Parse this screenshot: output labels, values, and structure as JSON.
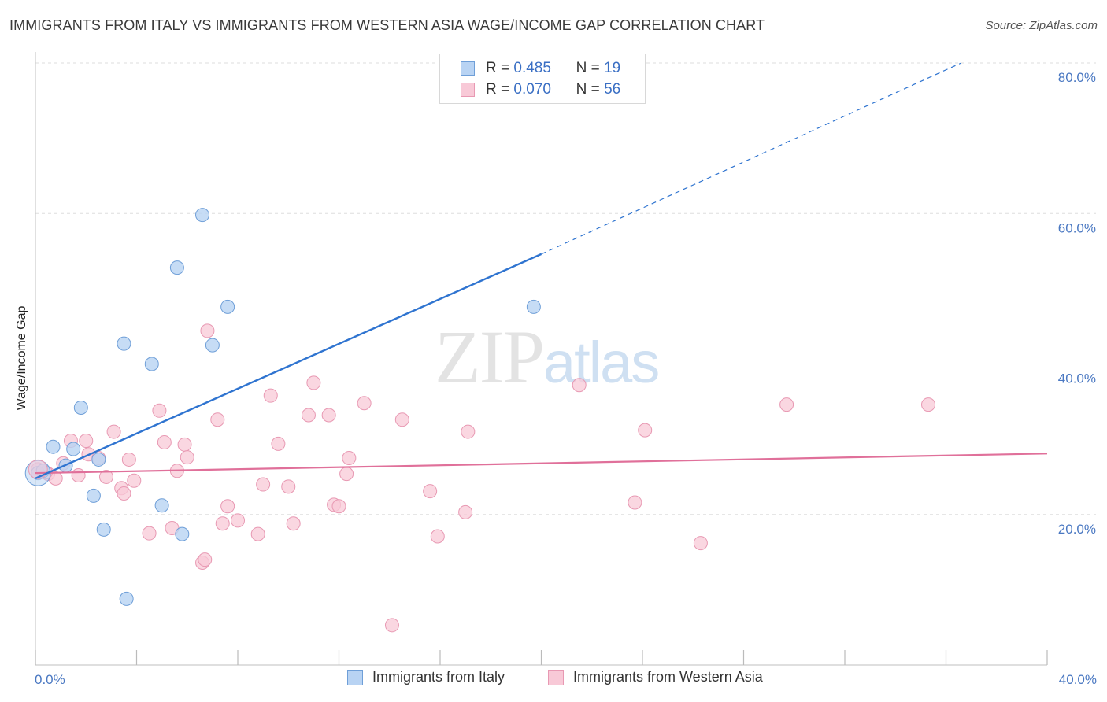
{
  "title": "IMMIGRANTS FROM ITALY VS IMMIGRANTS FROM WESTERN ASIA WAGE/INCOME GAP CORRELATION CHART",
  "source": "Source: ZipAtlas.com",
  "watermark": {
    "zip": "ZIP",
    "atlas": "atlas"
  },
  "legend": {
    "rows": [
      {
        "r_label": "R =",
        "r_value": "0.485",
        "n_label": "N =",
        "n_value": "19"
      },
      {
        "r_label": "R =",
        "r_value": "0.070",
        "n_label": "N =",
        "n_value": "56"
      }
    ]
  },
  "colors": {
    "italy_fill": "#b8d3f3",
    "italy_stroke": "#6f9fd8",
    "italy_line": "#2f74d0",
    "wasia_fill": "#f8c9d7",
    "wasia_stroke": "#e899b3",
    "wasia_line": "#e0709a",
    "grid": "#dedede",
    "tick_text": "#4a78c2"
  },
  "chart_data": {
    "type": "scatter",
    "title": "IMMIGRANTS FROM ITALY VS IMMIGRANTS FROM WESTERN ASIA WAGE/INCOME GAP CORRELATION CHART",
    "xlabel": "",
    "ylabel": "Wage/Income Gap",
    "xlim": [
      0,
      40
    ],
    "ylim": [
      0,
      80
    ],
    "x_tick_labels": [
      "0.0%",
      "40.0%"
    ],
    "y_ticks": [
      20,
      40,
      60,
      80
    ],
    "y_tick_labels": [
      "20.0%",
      "40.0%",
      "60.0%",
      "80.0%"
    ],
    "grid": true,
    "legend_position": "top-center",
    "series": [
      {
        "name": "Immigrants from Italy",
        "R": 0.485,
        "N": 19,
        "points": [
          [
            0.1,
            25.5
          ],
          [
            0.7,
            29.0
          ],
          [
            1.2,
            26.5
          ],
          [
            1.8,
            34.2
          ],
          [
            2.3,
            22.5
          ],
          [
            2.7,
            18.0
          ],
          [
            2.5,
            27.3
          ],
          [
            3.5,
            42.7
          ],
          [
            3.6,
            8.8
          ],
          [
            4.6,
            40.0
          ],
          [
            5.0,
            21.2
          ],
          [
            5.6,
            52.8
          ],
          [
            5.8,
            17.4
          ],
          [
            6.6,
            59.8
          ],
          [
            7.0,
            42.5
          ],
          [
            7.6,
            47.6
          ],
          [
            19.7,
            47.6
          ],
          [
            0.3,
            25.8
          ],
          [
            1.5,
            28.7
          ]
        ],
        "trend": {
          "x0": 0,
          "y0": 24.8,
          "x1": 20.0,
          "y1": 54.6,
          "x_dash_end": 36.6,
          "y_dash_end": 80.0
        }
      },
      {
        "name": "Immigrants from Western Asia",
        "R": 0.07,
        "N": 56,
        "points": [
          [
            0.1,
            26.0
          ],
          [
            0.5,
            25.4
          ],
          [
            0.8,
            24.8
          ],
          [
            1.1,
            26.8
          ],
          [
            1.4,
            29.8
          ],
          [
            1.7,
            25.2
          ],
          [
            2.0,
            29.8
          ],
          [
            2.1,
            28.0
          ],
          [
            2.5,
            27.5
          ],
          [
            2.8,
            25.0
          ],
          [
            3.1,
            31.0
          ],
          [
            3.4,
            23.5
          ],
          [
            3.5,
            22.8
          ],
          [
            3.7,
            27.3
          ],
          [
            3.9,
            24.5
          ],
          [
            4.5,
            17.5
          ],
          [
            4.9,
            33.8
          ],
          [
            5.1,
            29.6
          ],
          [
            5.4,
            18.2
          ],
          [
            5.6,
            25.8
          ],
          [
            5.9,
            29.3
          ],
          [
            6.0,
            27.6
          ],
          [
            6.6,
            13.6
          ],
          [
            6.7,
            14.0
          ],
          [
            6.8,
            44.4
          ],
          [
            7.2,
            32.6
          ],
          [
            7.4,
            18.8
          ],
          [
            7.6,
            21.1
          ],
          [
            8.0,
            19.2
          ],
          [
            8.8,
            17.4
          ],
          [
            9.0,
            24.0
          ],
          [
            9.3,
            35.8
          ],
          [
            9.6,
            29.4
          ],
          [
            10.0,
            23.7
          ],
          [
            10.2,
            18.8
          ],
          [
            10.8,
            33.2
          ],
          [
            11.0,
            37.5
          ],
          [
            11.6,
            33.2
          ],
          [
            11.8,
            21.3
          ],
          [
            12.0,
            21.1
          ],
          [
            12.3,
            25.4
          ],
          [
            12.4,
            27.5
          ],
          [
            13.0,
            34.8
          ],
          [
            14.1,
            5.3
          ],
          [
            14.5,
            32.6
          ],
          [
            15.6,
            23.1
          ],
          [
            15.9,
            17.1
          ],
          [
            17.0,
            20.3
          ],
          [
            17.1,
            31.0
          ],
          [
            21.5,
            37.2
          ],
          [
            23.7,
            21.6
          ],
          [
            24.1,
            31.2
          ],
          [
            26.3,
            16.2
          ],
          [
            29.7,
            34.6
          ],
          [
            35.3,
            34.6
          ],
          [
            0.4,
            25.6
          ]
        ],
        "trend": {
          "x0": 0,
          "y0": 25.5,
          "x1": 40,
          "y1": 28.1
        }
      }
    ]
  }
}
